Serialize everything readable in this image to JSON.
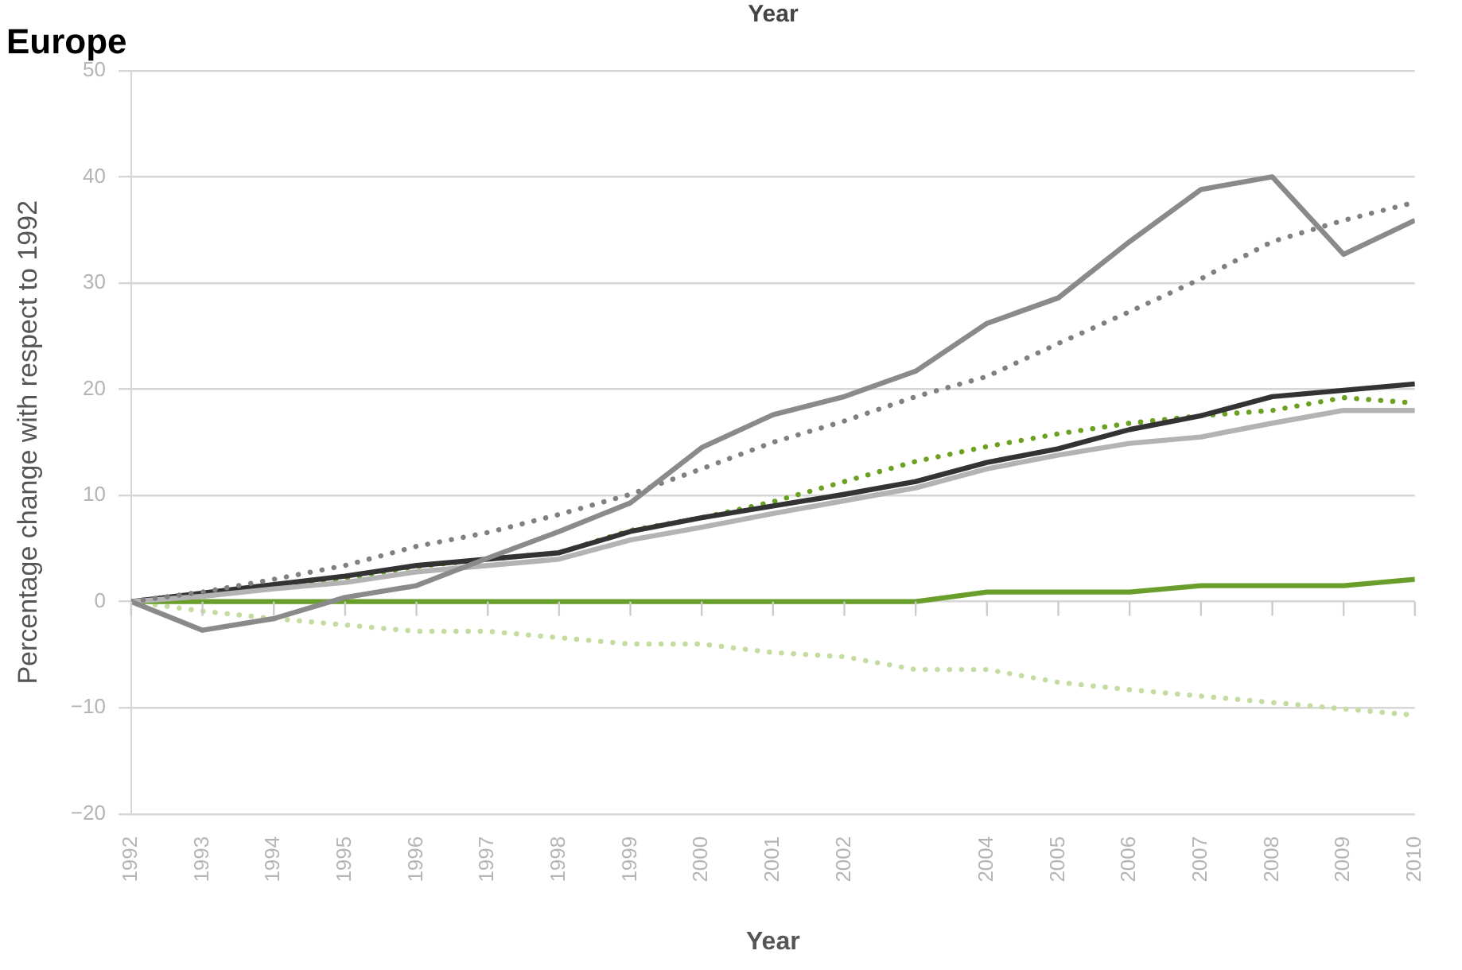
{
  "chart_data": {
    "type": "line",
    "title": "Europe",
    "xlabel": "Year",
    "x2label": "Year",
    "ylabel": "Percentage change with respect to 1992",
    "categories": [
      "1992",
      "1993",
      "1994",
      "1995",
      "1996",
      "1997",
      "1998",
      "1999",
      "2000",
      "2001",
      "2002",
      null,
      "2004",
      "2005",
      "2006",
      "2007",
      "2008",
      "2009",
      "2010"
    ],
    "ylim": [
      -20,
      50
    ],
    "yticks": [
      -20,
      -10,
      0,
      10,
      20,
      30,
      40,
      50
    ],
    "grid": "y",
    "legend": false,
    "marker": "none",
    "series": [
      {
        "color": "#8a8a8a",
        "line_style": "solid",
        "values": [
          0,
          -2.7,
          -1.6,
          0.4,
          1.5,
          4.1,
          6.6,
          9.3,
          14.5,
          17.6,
          19.3,
          21.7,
          26.2,
          28.6,
          33.9,
          38.8,
          40.0,
          32.7,
          35.9
        ]
      },
      {
        "color": "#808080",
        "line_style": "dotted",
        "values": [
          0,
          0.9,
          2.1,
          3.4,
          5.2,
          6.5,
          8.2,
          10.1,
          12.5,
          15.0,
          17.0,
          19.3,
          21.2,
          24.3,
          27.3,
          30.4,
          33.9,
          35.9,
          37.6
        ]
      },
      {
        "color": "#b3b3b3",
        "line_style": "solid",
        "values": [
          0,
          0.5,
          1.2,
          1.8,
          2.8,
          3.4,
          4.0,
          5.8,
          7.0,
          8.3,
          9.5,
          10.7,
          12.5,
          13.8,
          14.9,
          15.5,
          16.8,
          18.0,
          18.0
        ]
      },
      {
        "color": "#333333",
        "line_style": "solid",
        "values": [
          0,
          0.8,
          1.6,
          2.4,
          3.4,
          4.0,
          4.6,
          6.6,
          7.9,
          9.0,
          10.1,
          11.3,
          13.1,
          14.4,
          16.2,
          17.5,
          19.3,
          19.9,
          20.5
        ]
      },
      {
        "color": "#6aa121",
        "line_style": "dotted",
        "values": [
          0,
          0.7,
          1.5,
          2.2,
          3.3,
          4.0,
          4.6,
          6.7,
          7.9,
          9.4,
          11.3,
          13.2,
          14.6,
          15.8,
          16.8,
          17.5,
          18.0,
          19.2,
          18.7
        ]
      },
      {
        "color": "#6a9e2a",
        "line_style": "solid",
        "values": [
          0,
          0,
          0,
          0,
          0,
          0,
          0,
          0,
          0,
          0,
          0,
          0,
          0.9,
          0.9,
          0.9,
          1.5,
          1.5,
          1.5,
          2.1
        ]
      },
      {
        "color": "#c5dca0",
        "line_style": "dotted",
        "values": [
          0,
          -0.9,
          -1.6,
          -2.2,
          -2.8,
          -2.8,
          -3.4,
          -4.0,
          -4.0,
          -4.8,
          -5.2,
          -6.4,
          -6.4,
          -7.6,
          -8.3,
          -8.9,
          -9.5,
          -10.1,
          -10.7
        ]
      }
    ]
  }
}
